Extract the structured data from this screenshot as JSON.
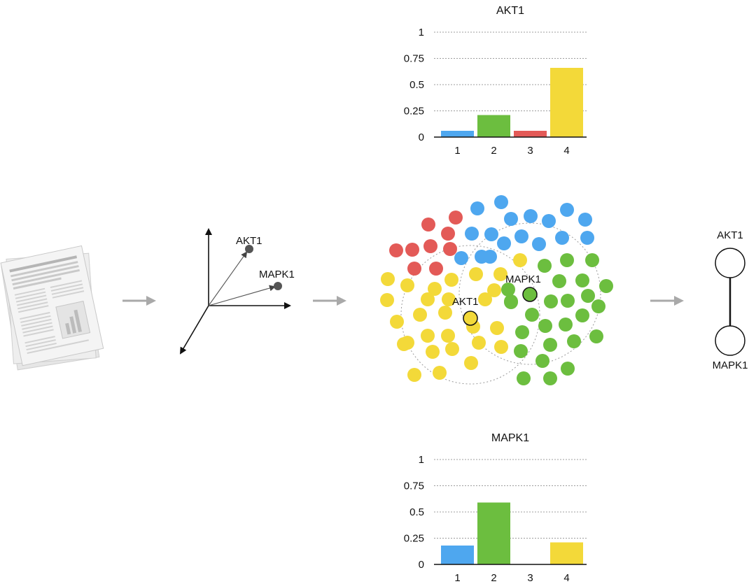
{
  "colors": {
    "blue": "#4ea7ef",
    "green": "#6cbe3f",
    "red": "#e35a57",
    "yellow": "#f3d939",
    "arrow": "#a9a9a9",
    "grid": "#9c9c9c",
    "point": "#555555"
  },
  "flow_arrows": [
    "right-arrow",
    "right-arrow",
    "right-arrow"
  ],
  "vector_space": {
    "labels": [
      "AKT1",
      "MAPK1"
    ]
  },
  "embedding": {
    "highlight_labels": [
      "AKT1",
      "MAPK1"
    ]
  },
  "graph": {
    "nodes": [
      "AKT1",
      "MAPK1"
    ]
  },
  "chart_data": [
    {
      "type": "bar",
      "title": "AKT1",
      "categories": [
        "1",
        "2",
        "3",
        "4"
      ],
      "values": [
        0.06,
        0.21,
        0.06,
        0.66
      ],
      "bar_colors": [
        "#4ea7ef",
        "#6cbe3f",
        "#e35a57",
        "#f3d939"
      ],
      "yticks": [
        "0",
        "0.25",
        "0.5",
        "0.75",
        "1"
      ],
      "ylim": [
        0,
        1
      ],
      "grid": true
    },
    {
      "type": "bar",
      "title": "MAPK1",
      "categories": [
        "1",
        "2",
        "3",
        "4"
      ],
      "values": [
        0.18,
        0.59,
        0.0,
        0.21
      ],
      "bar_colors": [
        "#4ea7ef",
        "#6cbe3f",
        "#e35a57",
        "#f3d939"
      ],
      "yticks": [
        "0",
        "0.25",
        "0.5",
        "0.75",
        "1"
      ],
      "ylim": [
        0,
        1
      ],
      "grid": true
    }
  ]
}
